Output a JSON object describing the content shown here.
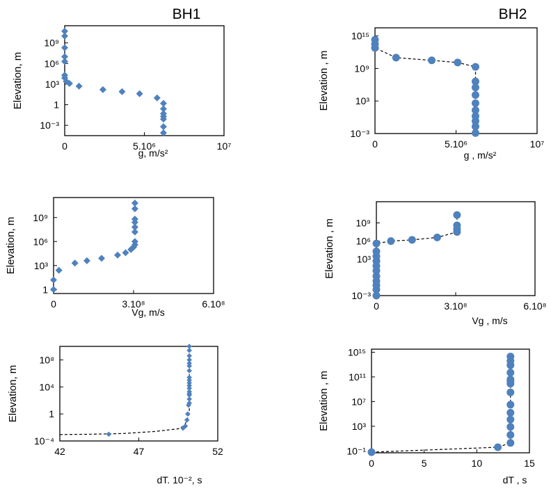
{
  "panels_title_bh1": "BH1",
  "panels_title_bh2": "BH2",
  "chart_data": [
    {
      "type": "scatter",
      "title": "BH1",
      "xlabel": "g, m/s²",
      "ylabel": "Elevation, m",
      "xscale": "linear",
      "yscale": "log",
      "xlim": [
        0,
        10000000
      ],
      "xticks": [
        {
          "v": 0,
          "label": "0"
        },
        {
          "v": 5000000,
          "label": "5.10⁶"
        },
        {
          "v": 10000000,
          "label": "10⁷"
        }
      ],
      "yticks": [
        {
          "e": -3,
          "label": "10⁻³"
        },
        {
          "e": 0,
          "label": "1"
        },
        {
          "e": 3,
          "label": "10³"
        },
        {
          "e": 6,
          "label": "10⁶"
        },
        {
          "e": 9,
          "label": "10⁹"
        }
      ],
      "ylim_exp": [
        -4.5,
        11.5
      ],
      "marker": "diamond",
      "line": false,
      "x": [
        0,
        0,
        0,
        0,
        0,
        0,
        0,
        100000,
        300000,
        900000,
        2400000,
        3600000,
        4700000,
        5800000,
        6200000,
        6200000,
        6200000,
        6200000,
        6200000,
        6200000,
        6200000
      ],
      "y_exp": [
        10.7,
        10.0,
        8.3,
        7.0,
        6.3,
        4.3,
        3.9,
        3.4,
        3.1,
        2.7,
        2.2,
        1.9,
        1.6,
        1.0,
        0.2,
        -0.6,
        -1.3,
        -1.7,
        -2.1,
        -3.2,
        -4.1
      ]
    },
    {
      "type": "line",
      "title": "BH2",
      "xlabel": "g , m/s²",
      "ylabel": "Elevation , m",
      "xscale": "linear",
      "yscale": "log",
      "xlim": [
        0,
        10000000
      ],
      "xticks": [
        {
          "v": 0,
          "label": "0"
        },
        {
          "v": 5000000,
          "label": "5.10⁶"
        },
        {
          "v": 10000000,
          "label": "10⁷"
        }
      ],
      "yticks": [
        {
          "e": -3,
          "label": "10⁻³"
        },
        {
          "e": 3,
          "label": "10³"
        },
        {
          "e": 9,
          "label": "10⁹"
        },
        {
          "e": 15,
          "label": "10¹⁵"
        }
      ],
      "ylim_exp": [
        -3,
        16.5
      ],
      "marker": "circle",
      "line": true,
      "x": [
        0,
        0,
        0,
        1300000,
        3500000,
        5100000,
        6200000,
        6200000,
        6200000,
        6200000,
        6200000,
        6200000,
        6200000,
        6200000,
        6200000,
        6200000
      ],
      "y_exp": [
        14.3,
        13.5,
        12.8,
        11.0,
        10.5,
        10.1,
        9.3,
        6.6,
        5.5,
        4.1,
        2.6,
        1.3,
        0.2,
        -0.7,
        -1.7,
        -2.9
      ]
    },
    {
      "type": "scatter",
      "xlabel": "Vg, m/s",
      "ylabel": "Elevation, m",
      "xscale": "linear",
      "yscale": "log",
      "xlim": [
        0,
        600000000
      ],
      "xticks": [
        {
          "v": 0,
          "label": "0"
        },
        {
          "v": 300000000,
          "label": "3.10⁸"
        },
        {
          "v": 600000000,
          "label": "6.10⁸"
        }
      ],
      "yticks": [
        {
          "e": 0,
          "label": "1"
        },
        {
          "e": 3,
          "label": "10³"
        },
        {
          "e": 6,
          "label": "10⁶"
        },
        {
          "e": 9,
          "label": "10⁹"
        }
      ],
      "ylim_exp": [
        -0.5,
        11.5
      ],
      "marker": "diamond",
      "line": false,
      "x": [
        0,
        0,
        20000000,
        80000000,
        125000000,
        180000000,
        240000000,
        270000000,
        290000000,
        300000000,
        305000000,
        305000000,
        305000000,
        305000000,
        305000000,
        305000000,
        305000000,
        305000000
      ],
      "y_exp": [
        0.0,
        1.2,
        2.4,
        3.3,
        3.6,
        3.9,
        4.3,
        4.6,
        5.0,
        5.3,
        5.6,
        6.0,
        7.2,
        7.8,
        8.8,
        10.1,
        10.8,
        8.4
      ]
    },
    {
      "type": "line",
      "xlabel": "Vg , m/s",
      "ylabel": "Elevation , m",
      "xscale": "linear",
      "yscale": "log",
      "xlim": [
        0,
        600000000
      ],
      "xticks": [
        {
          "v": 0,
          "label": "0"
        },
        {
          "v": 300000000,
          "label": "3.10⁸"
        },
        {
          "v": 600000000,
          "label": "6.10⁸"
        }
      ],
      "yticks": [
        {
          "e": -3,
          "label": "10⁻³"
        },
        {
          "e": 3,
          "label": "10³"
        },
        {
          "e": 6,
          "label": "10⁶"
        },
        {
          "e": 9,
          "label": "10⁹"
        }
      ],
      "ylim_exp": [
        -3,
        12.5
      ],
      "marker": "circle",
      "line": true,
      "x": [
        0,
        0,
        0,
        0,
        0,
        0,
        0,
        0,
        0,
        0,
        0,
        55000000,
        135000000,
        230000000,
        305000000,
        305000000,
        305000000,
        305000000
      ],
      "y_exp": [
        -3.0,
        -2.0,
        -1.3,
        -0.6,
        0.2,
        1.1,
        1.9,
        2.7,
        3.5,
        4.3,
        5.6,
        6.0,
        6.2,
        6.6,
        7.5,
        8.0,
        8.6,
        10.3
      ]
    },
    {
      "type": "line",
      "xlabel": "dT. 10⁻², s",
      "ylabel": "Elevation, m",
      "xscale": "linear",
      "yscale": "log",
      "xlim": [
        42,
        52
      ],
      "xticks": [
        {
          "v": 42,
          "label": "42"
        },
        {
          "v": 47,
          "label": "47"
        },
        {
          "v": 52,
          "label": "52"
        }
      ],
      "yticks": [
        {
          "e": -4,
          "label": "10⁻⁴"
        },
        {
          "e": 0,
          "label": "1"
        },
        {
          "e": 4,
          "label": "10⁴"
        },
        {
          "e": 8,
          "label": "10⁸"
        }
      ],
      "ylim_exp": [
        -4,
        10
      ],
      "marker": "diamond",
      "line": true,
      "marker_size": "small",
      "x": [
        45.1,
        49.8,
        49.95,
        50.05,
        50.1,
        50.15,
        50.2,
        50.2,
        50.2,
        50.2,
        50.2,
        50.2,
        50.2,
        50.2,
        50.2,
        50.2,
        50.2,
        50.2,
        50.2,
        50.2,
        50.2,
        50.2,
        50.2
      ],
      "y_exp": [
        -3.0,
        -2.1,
        -1.8,
        -0.9,
        0.0,
        1.3,
        2.2,
        2.8,
        3.3,
        3.8,
        4.2,
        4.6,
        5.0,
        5.4,
        6.4,
        7.1,
        7.5,
        8.0,
        8.6,
        9.4,
        10.0,
        3.0,
        1.6
      ],
      "line_path": [
        [
          42,
          -3.05
        ],
        [
          44,
          -3.0
        ],
        [
          46,
          -2.9
        ],
        [
          48,
          -2.6
        ],
        [
          49.5,
          -2.2
        ],
        [
          49.9,
          -1.7
        ],
        [
          50.2,
          0.0
        ],
        [
          50.2,
          10.0
        ]
      ]
    },
    {
      "type": "line",
      "xlabel": "dT , s",
      "ylabel": "Elevation , m",
      "xscale": "linear",
      "yscale": "log",
      "xlim": [
        0,
        15
      ],
      "xticks": [
        {
          "v": 0,
          "label": "0"
        },
        {
          "v": 5,
          "label": "5"
        },
        {
          "v": 10,
          "label": "10"
        },
        {
          "v": 15,
          "label": "15"
        }
      ],
      "yticks": [
        {
          "e": -1,
          "label": "10⁻¹"
        },
        {
          "e": 3,
          "label": "10³"
        },
        {
          "e": 7,
          "label": "10⁷"
        },
        {
          "e": 11,
          "label": "10¹¹"
        },
        {
          "e": 15,
          "label": "10¹⁵"
        }
      ],
      "ylim_exp": [
        -1.3,
        15.5
      ],
      "marker": "circle",
      "line": true,
      "x": [
        0,
        12.0,
        13.2,
        13.2,
        13.2,
        13.2,
        13.2,
        13.2,
        13.2,
        13.2,
        13.2,
        13.2,
        13.2,
        13.2,
        13.2,
        13.2
      ],
      "y_exp": [
        -1.2,
        -0.4,
        0.3,
        1.6,
        2.9,
        4.1,
        5.2,
        6.5,
        8.5,
        9.9,
        10.6,
        11.7,
        12.9,
        13.6,
        14.3,
        10.3
      ]
    }
  ]
}
